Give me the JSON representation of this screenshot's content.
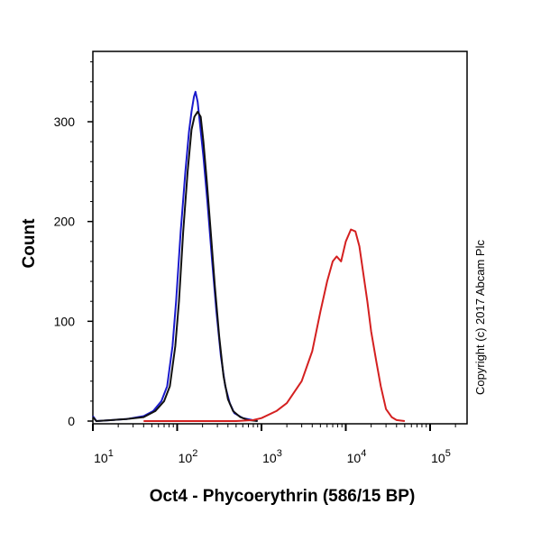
{
  "chart_data": {
    "type": "line",
    "title": "",
    "xlabel": "Oct4 - Phycoerythrin (586/15 BP)",
    "ylabel": "Count",
    "xscale": "log",
    "xlim": [
      10,
      275000
    ],
    "ylim": [
      0,
      370
    ],
    "grid": false,
    "x_tick_labels": [
      {
        "base": "10",
        "exp": "1",
        "value": 10
      },
      {
        "base": "10",
        "exp": "2",
        "value": 100
      },
      {
        "base": "10",
        "exp": "3",
        "value": 1000
      },
      {
        "base": "10",
        "exp": "4",
        "value": 10000
      },
      {
        "base": "10",
        "exp": "5",
        "value": 100000
      }
    ],
    "y_ticks": [
      0,
      100,
      200,
      300
    ],
    "annotation": "Copyright (c) 2017 Abcam Plc",
    "series": [
      {
        "color": "#1a1acc",
        "points": [
          [
            10,
            5
          ],
          [
            11,
            0
          ],
          [
            25,
            2
          ],
          [
            40,
            5
          ],
          [
            52,
            10
          ],
          [
            65,
            20
          ],
          [
            76,
            35
          ],
          [
            88,
            75
          ],
          [
            97,
            120
          ],
          [
            110,
            190
          ],
          [
            125,
            250
          ],
          [
            138,
            290
          ],
          [
            148,
            310
          ],
          [
            158,
            325
          ],
          [
            165,
            330
          ],
          [
            175,
            320
          ],
          [
            188,
            295
          ],
          [
            205,
            265
          ],
          [
            228,
            220
          ],
          [
            260,
            160
          ],
          [
            292,
            110
          ],
          [
            330,
            65
          ],
          [
            372,
            35
          ],
          [
            420,
            18
          ],
          [
            475,
            8
          ],
          [
            600,
            3
          ],
          [
            780,
            1
          ],
          [
            900,
            0
          ]
        ]
      },
      {
        "color": "#111111",
        "points": [
          [
            10,
            4
          ],
          [
            11,
            0
          ],
          [
            25,
            2
          ],
          [
            40,
            4
          ],
          [
            55,
            10
          ],
          [
            70,
            20
          ],
          [
            82,
            35
          ],
          [
            95,
            75
          ],
          [
            105,
            120
          ],
          [
            118,
            190
          ],
          [
            133,
            250
          ],
          [
            148,
            292
          ],
          [
            160,
            305
          ],
          [
            175,
            310
          ],
          [
            190,
            305
          ],
          [
            205,
            280
          ],
          [
            225,
            240
          ],
          [
            250,
            190
          ],
          [
            280,
            135
          ],
          [
            315,
            85
          ],
          [
            355,
            45
          ],
          [
            400,
            22
          ],
          [
            460,
            10
          ],
          [
            560,
            4
          ],
          [
            700,
            1
          ],
          [
            900,
            0
          ]
        ]
      },
      {
        "color": "#d42020",
        "points": [
          [
            40,
            0
          ],
          [
            500,
            0
          ],
          [
            800,
            1
          ],
          [
            1000,
            3
          ],
          [
            1500,
            10
          ],
          [
            2000,
            18
          ],
          [
            3000,
            40
          ],
          [
            4000,
            70
          ],
          [
            5000,
            110
          ],
          [
            6000,
            140
          ],
          [
            7000,
            160
          ],
          [
            7800,
            165
          ],
          [
            8800,
            160
          ],
          [
            10000,
            180
          ],
          [
            11500,
            192
          ],
          [
            13000,
            190
          ],
          [
            14500,
            175
          ],
          [
            16000,
            150
          ],
          [
            18000,
            120
          ],
          [
            20000,
            90
          ],
          [
            23000,
            60
          ],
          [
            26000,
            35
          ],
          [
            30000,
            12
          ],
          [
            35000,
            4
          ],
          [
            40000,
            1
          ],
          [
            50000,
            0
          ]
        ]
      }
    ]
  }
}
